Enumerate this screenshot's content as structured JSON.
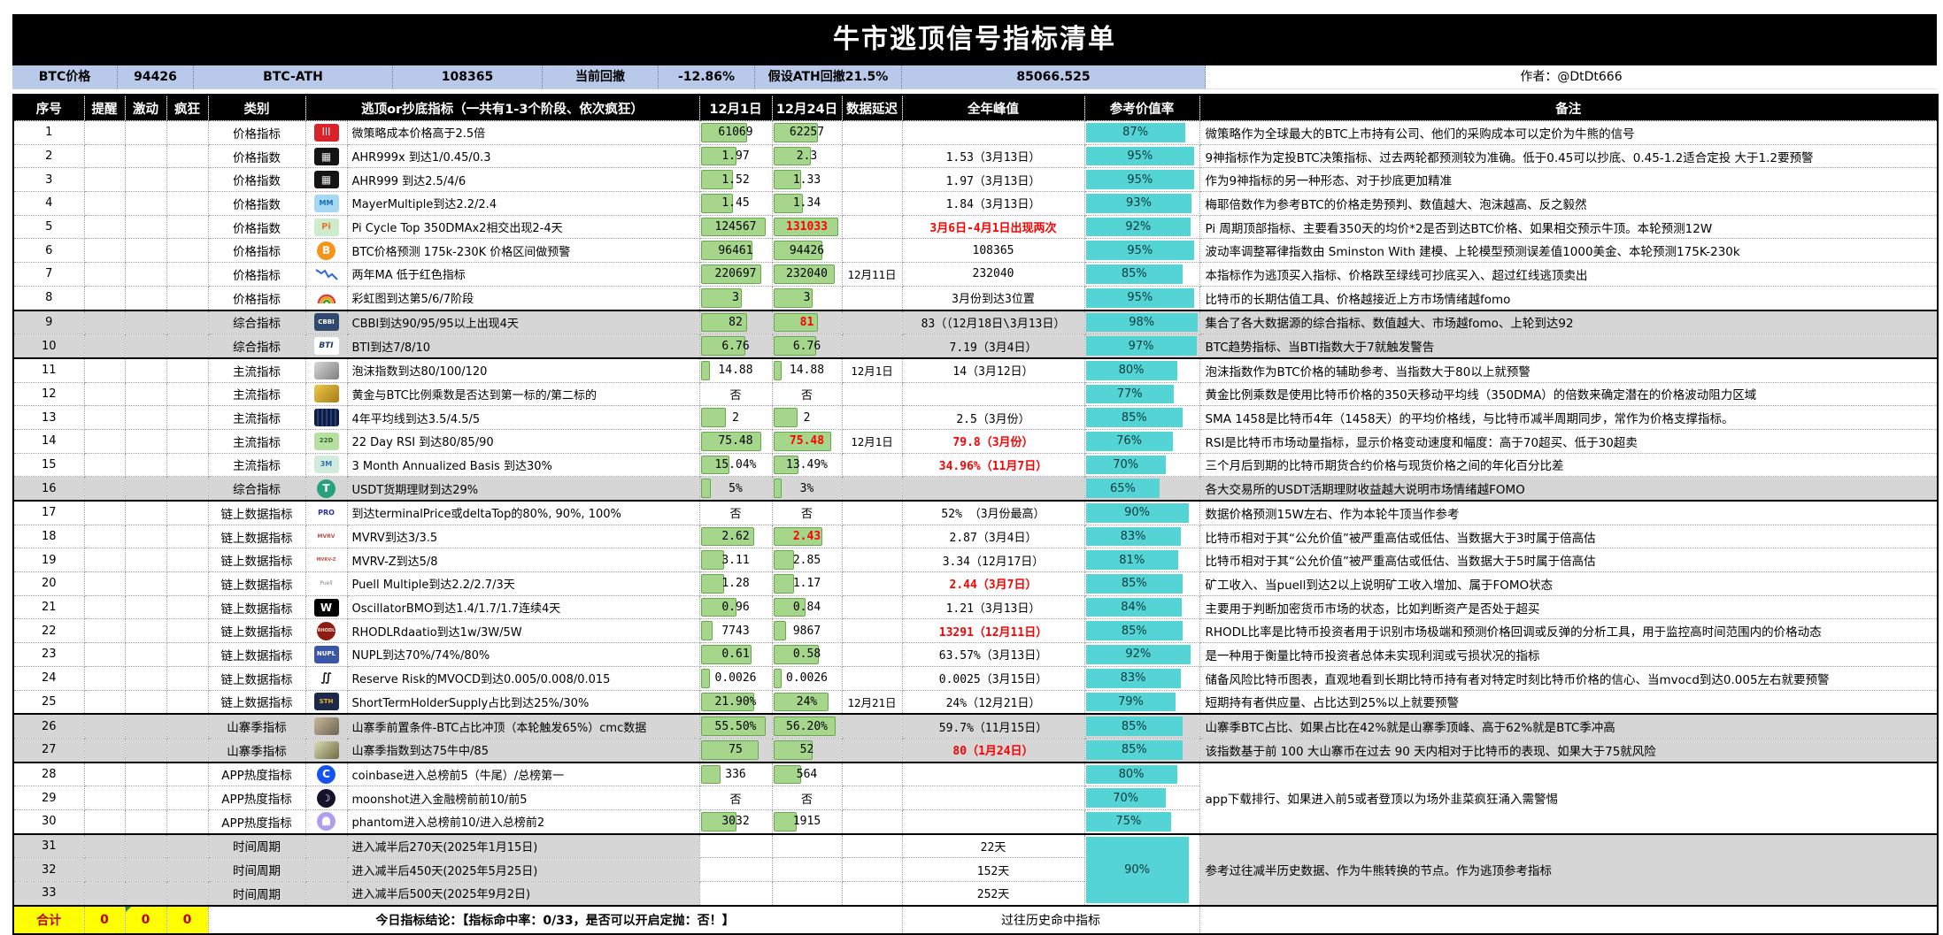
{
  "title": "牛市逃顶信号指标清单",
  "info": [
    "BTC价格",
    "94426",
    "BTC-ATH",
    "108365",
    "当前回撤",
    "-12.86%",
    "假设ATH回撤21.5%",
    "85066.525"
  ],
  "author": "作者：@DtDt666",
  "columns": [
    "序号",
    "提醒",
    "激动",
    "疯狂",
    "类别",
    "逃顶or抄底指标（一共有1-3个阶段、依次疯狂）",
    "12月1日",
    "12月24日",
    "数据延迟",
    "全年峰值",
    "参考价值率",
    "备注"
  ],
  "colors": {
    "title_bg": "#000000",
    "info_bg": "#b9c9e9",
    "bar_green": "#a6d68b",
    "bar_green_border": "#6aa84f",
    "rate_teal": "#55d4d5",
    "gray_row": "#d6d6d6",
    "alert_red": "#ff0000",
    "summary_yellow": "#ffff00",
    "summary_text": "#c00000"
  },
  "rows": [
    {
      "n": "1",
      "cat": "价格指标",
      "icon": {
        "n": "microstrategy-icon",
        "bg": "#d9232a",
        "fg": "#ffffff",
        "t": "|||",
        "fs": 9,
        "b": 1
      },
      "name": "微策略成本价格高于2.5倍",
      "d1": {
        "v": "61069",
        "bar": 62
      },
      "d2": {
        "v": "62257",
        "bar": 62
      },
      "delay": "",
      "peak": {
        "v": ""
      },
      "rate": {
        "pct": 87
      },
      "remark": {
        "text": "微策略作为全球最大的BTC上市持有公司、他们的采购成本可以定价为牛熊的信号"
      }
    },
    {
      "n": "2",
      "cat": "价格指数",
      "icon": {
        "n": "ahr999x-icon",
        "bg": "#141414",
        "fg": "#e8e8e8",
        "t": "▦",
        "fs": 12
      },
      "name": "AHR999x 到达1/0.45/0.3",
      "d1": {
        "v": "1.97",
        "bar": 48
      },
      "d2": {
        "v": "2.3",
        "bar": 52
      },
      "delay": "",
      "peak": {
        "v": "1.53（3月13日）"
      },
      "rate": {
        "pct": 95
      },
      "remark": {
        "text": "9神指标作为定投BTC决策指标、过去两轮都预测较为准确。低于0.45可以抄底、0.45-1.2适合定投 大于1.2要预警"
      }
    },
    {
      "n": "3",
      "cat": "价格指数",
      "icon": {
        "n": "ahr999-icon",
        "bg": "#141414",
        "fg": "#e8e8e8",
        "t": "▦",
        "fs": 12
      },
      "name": "AHR999  到达2.5/4/6",
      "d1": {
        "v": "1.52",
        "bar": 42
      },
      "d2": {
        "v": "1.33",
        "bar": 38
      },
      "delay": "",
      "peak": {
        "v": "1.97（3月13日）"
      },
      "rate": {
        "pct": 95
      },
      "remark": {
        "text": "作为9神指标的另一种形态、对于抄底更加精准"
      }
    },
    {
      "n": "4",
      "cat": "价格指数",
      "icon": {
        "n": "mayer-multiple-icon",
        "bg": "#a5d8f3",
        "fg": "#1a6fae",
        "t": "MM",
        "fs": 8,
        "b": 1
      },
      "name": "MayerMultiple到达2.2/2.4",
      "d1": {
        "v": "1.45",
        "bar": 42
      },
      "d2": {
        "v": "1.34",
        "bar": 40
      },
      "delay": "",
      "peak": {
        "v": "1.84（3月13日）"
      },
      "rate": {
        "pct": 93
      },
      "remark": {
        "text": "梅耶倍数作为参考BTC的价格走势预判、数值越大、泡沫越高、反之毅然"
      }
    },
    {
      "n": "5",
      "cat": "价格指数",
      "icon": {
        "n": "pi-cycle-icon",
        "bg": "#cdeccc",
        "fg": "#e8792b",
        "t": "Pi",
        "fs": 10,
        "b": 1
      },
      "name": "Pi Cycle Top 350DMAx2相交出现2-4天",
      "d1": {
        "v": "124567",
        "bar": 88
      },
      "d2": {
        "v": "131033",
        "bar": 92,
        "red": 1
      },
      "delay": "",
      "peak": {
        "v": "3月6日-4月1日出现两次",
        "red": 1
      },
      "rate": {
        "pct": 92
      },
      "remark": {
        "text": "Pi 周期顶部指标、主要看350天的均价*2是否到达BTC价格、如果相交预示牛顶。本轮预测12W"
      }
    },
    {
      "n": "6",
      "cat": "价格指标",
      "icon": {
        "n": "bitcoin-icon",
        "bg": "#f7931a",
        "fg": "#ffffff",
        "t": "B",
        "fs": 12,
        "b": 1,
        "round": 1
      },
      "name": "BTC价格预测 175k-230K 价格区间做预警",
      "d1": {
        "v": "96461",
        "bar": 70
      },
      "d2": {
        "v": "94426",
        "bar": 68
      },
      "delay": "",
      "peak": {
        "v": "108365"
      },
      "rate": {
        "pct": 95
      },
      "remark": {
        "text": "波动率调整幂律指数由 Sminston With 建模、上轮模型预测误差值1000美金、本轮预测175K-230k"
      }
    },
    {
      "n": "7",
      "cat": "价格指标",
      "icon": {
        "n": "two-year-ma-chart-icon",
        "kind": "chart",
        "bg": "#ffffff"
      },
      "name": "两年MA 低于红色指标",
      "d1": {
        "v": "220697",
        "bar": 82
      },
      "d2": {
        "v": "232040",
        "bar": 86
      },
      "delay": "12月11日",
      "peak": {
        "v": "232040"
      },
      "rate": {
        "pct": 85
      },
      "remark": {
        "text": "本指标作为逃顶买入指标、价格跌至绿线可抄底买入、超过红线逃顶卖出"
      }
    },
    {
      "n": "8",
      "cat": "价格指标",
      "icon": {
        "n": "rainbow-chart-icon",
        "kind": "rainbow",
        "bg": "#ffffff"
      },
      "name": "彩虹图到达第5/6/7阶段",
      "d1": {
        "v": "3",
        "bar": 55
      },
      "d2": {
        "v": "3",
        "bar": 55
      },
      "delay": "",
      "peak": {
        "v": "3月份到达3位置"
      },
      "rate": {
        "pct": 95
      },
      "remark": {
        "text": "比特币的长期估值工具、价格越接近上方市场情绪越fomo"
      }
    },
    {
      "n": "9",
      "cat": "综合指标",
      "gs": 1,
      "gray": "full",
      "icon": {
        "n": "cbbi-icon",
        "bg": "#2f4a6e",
        "fg": "#ffffff",
        "t": "CBBI",
        "fs": 7,
        "b": 1
      },
      "name": "CBBI到达90/95/95以上出现4天",
      "d1": {
        "v": "82",
        "bar": 62
      },
      "d2": {
        "v": "81",
        "bar": 62,
        "red": 1
      },
      "delay": "",
      "peak": {
        "v": "83（（12月18日\\3月13日）"
      },
      "rate": {
        "pct": 98
      },
      "remark": {
        "text": "集合了各大数据源的综合指标、数值越大、市场越fomo、上轮到达92"
      }
    },
    {
      "n": "10",
      "cat": "综合指标",
      "gray": "full",
      "icon": {
        "n": "bti-icon",
        "bg": "#ffffff",
        "fg": "#1f3864",
        "t": "BTI",
        "fs": 9,
        "b": 1,
        "i": 1
      },
      "name": "BTI到达7/8/10",
      "d1": {
        "v": "6.76",
        "bar": 60
      },
      "d2": {
        "v": "6.76",
        "bar": 60
      },
      "delay": "",
      "peak": {
        "v": "7.19（3月4日）"
      },
      "rate": {
        "pct": 97
      },
      "remark": {
        "text": "BTC趋势指标、当BTI指数大于7就触发警告"
      }
    },
    {
      "n": "11",
      "cat": "主流指标",
      "gs": 1,
      "icon": {
        "n": "bubble-index-icon",
        "bg": "linear-gradient(135deg,#d8d8d8,#7e7e7e)"
      },
      "name": "泡沫指数到达80/100/120",
      "d1": {
        "v": "14.88",
        "bar": 10
      },
      "d2": {
        "v": "14.88",
        "bar": 10
      },
      "delay": "12月1日",
      "peak": {
        "v": "14（3月12日）"
      },
      "rate": {
        "pct": 80
      },
      "remark": {
        "text": "泡沫指数作为BTC价格的辅助参考、当指数大于80以上就预警"
      }
    },
    {
      "n": "12",
      "cat": "主流指标",
      "icon": {
        "n": "gold-ratio-icon",
        "bg": "linear-gradient(135deg,#ecc94b,#a97b16)"
      },
      "name": "黄金与BTC比例乘数是否达到第一标的/第二标的",
      "d1": {
        "v": "否"
      },
      "d2": {
        "v": "否"
      },
      "delay": "",
      "peak": {
        "v": ""
      },
      "rate": {
        "pct": 77
      },
      "remark": {
        "text": "黄金比例乘数是使用比特币价格的350天移动平均线（350DMA）的倍数来确定潜在的价格波动阻力区域"
      }
    },
    {
      "n": "13",
      "cat": "主流指标",
      "icon": {
        "n": "four-year-sma-icon",
        "bg": "repeating-linear-gradient(90deg,#0d1b3e 0 3px,#27407a 3px 5px)"
      },
      "name": "4年平均线到达3.5/4.5/5",
      "d1": {
        "v": "2",
        "bar": 33
      },
      "d2": {
        "v": "2",
        "bar": 33
      },
      "delay": "",
      "peak": {
        "v": "2.5（3月份）"
      },
      "rate": {
        "pct": 85
      },
      "remark": {
        "text": "SMA 1458是比特币4年（1458天）的平均价格线，与比特币减半周期同步，常作为价格支撑指标。"
      }
    },
    {
      "n": "14",
      "cat": "主流指标",
      "icon": {
        "n": "rsi-icon",
        "bg": "#b7e0a0",
        "fg": "#2f6c2f",
        "t": "22D",
        "fs": 7,
        "b": 1
      },
      "name": "22 Day RSI 到达80/85/90",
      "d1": {
        "v": "75.48",
        "bar": 82
      },
      "d2": {
        "v": "75.48",
        "bar": 82,
        "red": 1
      },
      "delay": "12月1日",
      "peak": {
        "v": "79.8（3月份）",
        "red": 1
      },
      "rate": {
        "pct": 76
      },
      "remark": {
        "text": "RSI是比特币市场动量指标，显示价格变动速度和幅度：高于70超买、低于30超卖"
      }
    },
    {
      "n": "15",
      "cat": "主流指标",
      "icon": {
        "n": "basis-icon",
        "bg": "#d2ecdc",
        "fg": "#2e75b6",
        "t": "3M",
        "fs": 8,
        "b": 1
      },
      "name": "3 Month Annualized Basis 到达30%",
      "d1": {
        "v": "15.04%",
        "bar": 38
      },
      "d2": {
        "v": "13.49%",
        "bar": 34
      },
      "delay": "",
      "peak": {
        "v": "34.96%（11月7日）",
        "red": 1
      },
      "rate": {
        "pct": 70
      },
      "remark": {
        "text": "三个月后到期的比特币期货合约价格与现货价格之间的年化百分比差"
      }
    },
    {
      "n": "16",
      "cat": "综合指标",
      "gray": "full",
      "icon": {
        "n": "usdt-icon",
        "bg": "#26a17b",
        "fg": "#ffffff",
        "t": "T",
        "fs": 12,
        "b": 1,
        "round": 1
      },
      "name": "USDT货期理财到达29%",
      "d1": {
        "v": "5%",
        "bar": 12
      },
      "d2": {
        "v": "3%",
        "bar": 10
      },
      "delay": "",
      "peak": {
        "v": ""
      },
      "rate": {
        "pct": 65
      },
      "remark": {
        "text": "各大交易所的USDT活期理财收益越大说明市场情绪越FOMO"
      }
    },
    {
      "n": "17",
      "cat": "链上数据指标",
      "gs": 1,
      "icon": {
        "n": "terminal-price-icon",
        "bg": "#ffffff",
        "fg": "#2e3192",
        "t": "PRO",
        "fs": 8,
        "b": 1
      },
      "name": "到达terminalPrice或deltaTop的80%, 90%, 100%",
      "d1": {
        "v": "否"
      },
      "d2": {
        "v": "否"
      },
      "delay": "",
      "peak": {
        "v": "52% （3月份最高）"
      },
      "rate": {
        "pct": 90
      },
      "remark": {
        "text": "数据价格预测15W左右、作为本轮牛顶当作参考"
      }
    },
    {
      "n": "18",
      "cat": "链上数据指标",
      "icon": {
        "n": "mvrv-icon",
        "bg": "#ffffff",
        "fg": "#c0504d",
        "t": "MVRV",
        "fs": 6,
        "b": 1
      },
      "name": "MVRV到达3/3.5",
      "d1": {
        "v": "2.62",
        "bar": 72
      },
      "d2": {
        "v": "2.43",
        "bar": 68,
        "red": 1
      },
      "delay": "",
      "peak": {
        "v": "2.87（3月4日）"
      },
      "rate": {
        "pct": 83
      },
      "remark": {
        "text": "比特币相对于其“公允价值”被严重高估或低估、当数据大于3时属于倍高估"
      }
    },
    {
      "n": "19",
      "cat": "链上数据指标",
      "icon": {
        "n": "mvrv-z-icon",
        "bg": "#ffffff",
        "fg": "#c0504d",
        "t": "MVRV-Z",
        "fs": 5,
        "b": 1
      },
      "name": "MVRV-Z到达5/8",
      "d1": {
        "v": "3.11",
        "bar": 30
      },
      "d2": {
        "v": "2.85",
        "bar": 28
      },
      "delay": "",
      "peak": {
        "v": "3.34（12月17日）"
      },
      "rate": {
        "pct": 81
      },
      "remark": {
        "text": "比特币相对于其“公允价值”被严重高估或低估、当数据大于5时属于倍高估"
      }
    },
    {
      "n": "20",
      "cat": "链上数据指标",
      "icon": {
        "n": "puell-multiple-icon",
        "bg": "#ffffff",
        "fg": "#808080",
        "t": "Puell",
        "fs": 6
      },
      "name": "Puell Multiple到达2.2/2.7/3天",
      "d1": {
        "v": "1.28",
        "bar": 30
      },
      "d2": {
        "v": "1.17",
        "bar": 28
      },
      "delay": "",
      "peak": {
        "v": "2.44（3月7日）",
        "red": 1
      },
      "rate": {
        "pct": 85
      },
      "remark": {
        "text": "矿工收入、当puell到达2以上说明矿工收入增加、属于FOMO状态"
      }
    },
    {
      "n": "21",
      "cat": "链上数据指标",
      "icon": {
        "n": "oscillator-bmo-icon",
        "bg": "#000000",
        "fg": "#ffffff",
        "t": "W",
        "fs": 12,
        "b": 1
      },
      "name": "OscillatorBMO到达1.4/1.7/1.7连续4天",
      "d1": {
        "v": "0.96",
        "bar": 48
      },
      "d2": {
        "v": "0.84",
        "bar": 44
      },
      "delay": "",
      "peak": {
        "v": "1.21（3月13日）"
      },
      "rate": {
        "pct": 84
      },
      "remark": {
        "text": "主要用于判断加密货币市场的状态，比如判断资产是否处于超买"
      }
    },
    {
      "n": "22",
      "cat": "链上数据指标",
      "icon": {
        "n": "rhodl-ratio-icon",
        "bg": "#8d1d12",
        "fg": "#ffd9d0",
        "t": "RHODL",
        "fs": 5,
        "b": 1,
        "round": 1
      },
      "name": "RHODLRdaatio到达1w/3W/5W",
      "d1": {
        "v": "7743",
        "bar": 14
      },
      "d2": {
        "v": "9867",
        "bar": 16
      },
      "delay": "",
      "peak": {
        "v": "13291（12月11日）",
        "red": 1
      },
      "rate": {
        "pct": 85
      },
      "remark": {
        "text": "RHODL比率是比特币投资者用于识别市场极端和预测价格回调或反弹的分析工具，用于监控高时间范围内的价格动态"
      }
    },
    {
      "n": "23",
      "cat": "链上数据指标",
      "icon": {
        "n": "nupl-icon",
        "bg": "#3a57a7",
        "fg": "#ffffff",
        "t": "NUPL",
        "fs": 7,
        "b": 1
      },
      "name": "NUPL到达70%/74%/80%",
      "d1": {
        "v": "0.61",
        "bar": 68
      },
      "d2": {
        "v": "0.58",
        "bar": 64
      },
      "delay": "",
      "peak": {
        "v": "63.57%（3月13日）"
      },
      "rate": {
        "pct": 92
      },
      "remark": {
        "text": "是一种用于衡量比特币投资者总体未实现利润或亏损状况的指标"
      }
    },
    {
      "n": "24",
      "cat": "链上数据指标",
      "icon": {
        "n": "reserve-risk-icon",
        "bg": "#ffffff",
        "fg": "#111111",
        "t": "∬",
        "fs": 13,
        "b": 1
      },
      "name": "Reserve Risk的MVOCD到达0.005/0.008/0.015",
      "d1": {
        "v": "0.0026",
        "bar": 10
      },
      "d2": {
        "v": "0.0026",
        "bar": 10
      },
      "delay": "",
      "peak": {
        "v": "0.0025（3月15日）"
      },
      "rate": {
        "pct": 83
      },
      "remark": {
        "text": "储备风险比特币图表，直观地看到长期比特币持有者对特定时刻比特币价格的信心、当mvocd到达0.005左右就要预警"
      }
    },
    {
      "n": "25",
      "cat": "链上数据指标",
      "icon": {
        "n": "sth-supply-icon",
        "bg": "#1b2a4a",
        "fg": "#f0b429",
        "t": "STH",
        "fs": 7,
        "b": 1
      },
      "name": "ShortTermHolderSupply占比到达25%/30%",
      "d1": {
        "v": "21.90%",
        "bar": 72
      },
      "d2": {
        "v": "24%",
        "bar": 78
      },
      "delay": "12月21日",
      "peak": {
        "v": "24%（12月21日）"
      },
      "rate": {
        "pct": 79
      },
      "remark": {
        "text": "短期持有者供应量、占比达到25%以上就要预警"
      }
    },
    {
      "n": "26",
      "cat": "山寨季指标",
      "gs": 1,
      "gray": "full",
      "icon": {
        "n": "altseason-precondition-icon",
        "bg": "linear-gradient(135deg,#c9b999,#6e6352)"
      },
      "name": "山寨季前置条件-BTC占比冲顶（本轮触发65%）cmc数据",
      "d1": {
        "v": "55.50%",
        "bar": 88
      },
      "d2": {
        "v": "56.20%",
        "bar": 88
      },
      "delay": "",
      "peak": {
        "v": "59.7%（11月15日）"
      },
      "rate": {
        "pct": 85
      },
      "remark": {
        "text": "山寨季BTC占比、如果占比在42%就是山寨季顶峰、高于62%就是BTC季冲高"
      }
    },
    {
      "n": "27",
      "cat": "山寨季指标",
      "gray": "full",
      "icon": {
        "n": "altseason-index-icon",
        "bg": "linear-gradient(135deg,#d7ddb5,#70683f)"
      },
      "name": "山寨季指数到达75牛中/85",
      "d1": {
        "v": "75",
        "bar": 78
      },
      "d2": {
        "v": "52",
        "bar": 55
      },
      "delay": "",
      "peak": {
        "v": "80（1月24日）",
        "red": 1
      },
      "rate": {
        "pct": 85
      },
      "remark": {
        "text": "该指数基于前 100 大山寨币在过去 90 天内相对于比特币的表现、如果大于75就风险"
      }
    },
    {
      "n": "28",
      "cat": "APP热度指标",
      "gs": 1,
      "icon": {
        "n": "coinbase-icon",
        "bg": "#1652f0",
        "fg": "#ffffff",
        "t": "C",
        "fs": 12,
        "b": 1,
        "round": 1
      },
      "name": "coinbase进入总榜前5（牛尾）/总榜第一",
      "d1": {
        "v": "336",
        "bar": 25
      },
      "d2": {
        "v": "564",
        "bar": 38
      },
      "delay": "",
      "peak": {
        "v": ""
      },
      "rate": {
        "pct": 80
      },
      "remark": {
        "text": "app下载排行、如果进入前5或者登顶以为场外韭菜疯狂涌入需警惕",
        "span": 3
      }
    },
    {
      "n": "29",
      "cat": "APP热度指标",
      "icon": {
        "n": "moonshot-icon",
        "bg": "#17122b",
        "fg": "#ffffff",
        "t": "☽",
        "fs": 11,
        "round": 1
      },
      "name": "moonshot进入金融榜前前10/前5",
      "d1": {
        "v": "否"
      },
      "d2": {
        "v": "否"
      },
      "delay": "",
      "peak": {
        "v": ""
      },
      "rate": {
        "pct": 70
      }
    },
    {
      "n": "30",
      "cat": "APP热度指标",
      "icon": {
        "n": "phantom-icon",
        "kind": "ghost",
        "bg": "#ab9ff2",
        "round": 1
      },
      "name": "phantom进入总榜前10/进入总榜前2",
      "d1": {
        "v": "3032",
        "bar": 48
      },
      "d2": {
        "v": "1915",
        "bar": 32
      },
      "delay": "",
      "peak": {
        "v": ""
      },
      "rate": {
        "pct": 75
      }
    },
    {
      "n": "31",
      "cat": "时间周期",
      "gs": 1,
      "gray": "left",
      "icon": null,
      "name": "进入减半后270天(2025年1月15日)",
      "d1": {
        "v": ""
      },
      "d2": {
        "v": ""
      },
      "delay": "",
      "peak": {
        "v": "22天"
      },
      "rate": {
        "pct": 90,
        "span": 3
      },
      "remark": {
        "text": "参考过往减半历史数据、作为牛熊转换的节点。作为逃顶参考指标",
        "span": 3,
        "gray": 1
      }
    },
    {
      "n": "32",
      "cat": "时间周期",
      "gray": "left",
      "icon": null,
      "name": "进入减半后450天(2025年5月25日)",
      "d1": {
        "v": ""
      },
      "d2": {
        "v": ""
      },
      "delay": "",
      "peak": {
        "v": "152天"
      }
    },
    {
      "n": "33",
      "cat": "时间周期",
      "gray": "left",
      "icon": null,
      "name": "进入减半后500天(2025年9月2日)",
      "d1": {
        "v": ""
      },
      "d2": {
        "v": ""
      },
      "delay": "",
      "peak": {
        "v": "252天"
      }
    }
  ],
  "summary": {
    "label": "合计",
    "counts": [
      "0",
      "0",
      "0"
    ],
    "conclusion": "今日指标结论：【指标命中率：0/33，是否可以开启定抛：否！】",
    "history_label": "过往历史命中指标"
  }
}
